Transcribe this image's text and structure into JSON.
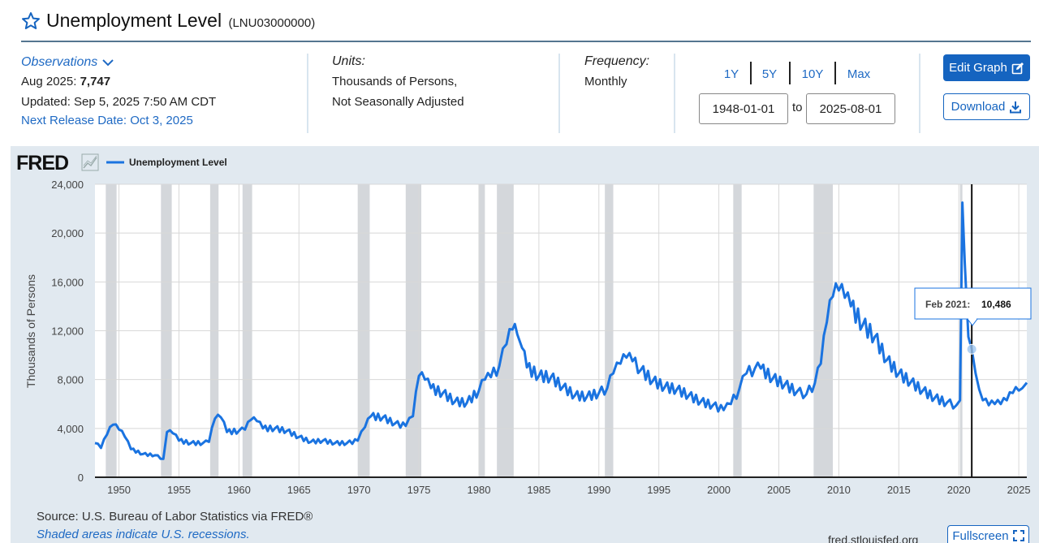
{
  "header": {
    "title": "Unemployment Level",
    "series_id": "(LNU03000000)"
  },
  "observations": {
    "toggle_label": "Observations",
    "latest_period": "Aug 2025:",
    "latest_value": "7,747",
    "updated": "Updated: Sep 5, 2025 7:50 AM CDT",
    "next_release": "Next Release Date: Oct 3, 2025"
  },
  "units": {
    "heading": "Units:",
    "line1": "Thousands of Persons,",
    "line2": "Not Seasonally Adjusted"
  },
  "frequency": {
    "heading": "Frequency:",
    "value": "Monthly"
  },
  "range_buttons": [
    "1Y",
    "5Y",
    "10Y",
    "Max"
  ],
  "date_range": {
    "start": "1948-01-01",
    "to_label": "to",
    "end": "2025-08-01"
  },
  "actions": {
    "edit_graph": "Edit Graph",
    "download": "Download",
    "fullscreen": "Fullscreen"
  },
  "footer": {
    "source": "Source: U.S. Bureau of Labor Statistics via FRED®",
    "shaded_note": "Shaded areas indicate U.S. recessions.",
    "site": "fred.stlouisfed.org"
  },
  "graph": {
    "logo": "FRED",
    "legend_label": "Unemployment Level",
    "tooltip_date": "Feb 2021:",
    "tooltip_value": "10,486"
  },
  "colors": {
    "series": "#1a73e0",
    "recession": "#d4d7db",
    "panel": "#e1e9f0",
    "button": "#1564c0"
  },
  "chart_data": {
    "type": "line",
    "ylabel": "Thousands of Persons",
    "ylim": [
      0,
      24000
    ],
    "xlim": [
      1948.0,
      2025.67
    ],
    "yticks": [
      0,
      4000,
      8000,
      12000,
      16000,
      20000,
      24000
    ],
    "ytick_labels": [
      "0",
      "4,000",
      "8,000",
      "12,000",
      "16,000",
      "20,000",
      "24,000"
    ],
    "xticks": [
      1950,
      1955,
      1960,
      1965,
      1970,
      1975,
      1980,
      1985,
      1990,
      1995,
      2000,
      2005,
      2010,
      2015,
      2020,
      2025
    ],
    "recessions": [
      [
        1948.9,
        1949.8
      ],
      [
        1953.5,
        1954.4
      ],
      [
        1957.6,
        1958.3
      ],
      [
        1960.3,
        1961.1
      ],
      [
        1969.9,
        1970.9
      ],
      [
        1973.9,
        1975.2
      ],
      [
        1980.0,
        1980.5
      ],
      [
        1981.5,
        1982.9
      ],
      [
        1990.5,
        1991.2
      ],
      [
        2001.2,
        2001.9
      ],
      [
        2007.9,
        2009.5
      ],
      [
        2020.1,
        2020.3
      ]
    ],
    "highlight": {
      "x": 2021.08,
      "y": 10486
    },
    "series": [
      {
        "name": "Unemployment Level",
        "x": [
          1948.0,
          1948.5,
          1949.0,
          1949.5,
          1950.0,
          1950.5,
          1951.0,
          1952.0,
          1953.0,
          1953.7,
          1954.0,
          1954.5,
          1955.0,
          1956.0,
          1957.0,
          1957.5,
          1958.0,
          1958.5,
          1959.0,
          1960.0,
          1960.5,
          1961.0,
          1961.5,
          1962.0,
          1963.0,
          1964.0,
          1965.0,
          1966.0,
          1967.0,
          1968.0,
          1969.0,
          1969.9,
          1970.5,
          1971.0,
          1972.0,
          1973.0,
          1973.9,
          1974.5,
          1975.0,
          1975.5,
          1976.0,
          1977.0,
          1978.0,
          1979.0,
          1980.0,
          1980.5,
          1981.0,
          1981.7,
          1982.3,
          1982.8,
          1983.2,
          1983.6,
          1984.0,
          1985.0,
          1986.0,
          1987.0,
          1988.0,
          1989.0,
          1990.0,
          1990.7,
          1991.2,
          1991.8,
          1992.3,
          1992.8,
          1993.5,
          1994.5,
          1995.5,
          1996.5,
          1997.5,
          1998.5,
          1999.5,
          2000.4,
          2001.0,
          2001.7,
          2002.3,
          2003.0,
          2003.5,
          2004.5,
          2005.5,
          2006.5,
          2007.3,
          2008.0,
          2008.5,
          2009.0,
          2009.5,
          2010.0,
          2010.5,
          2011.0,
          2012.0,
          2013.0,
          2014.0,
          2015.0,
          2016.0,
          2017.0,
          2018.0,
          2019.0,
          2019.8,
          2020.1,
          2020.3,
          2020.5,
          2020.8,
          2021.08,
          2021.4,
          2021.7,
          2022.0,
          2022.5,
          2023.0,
          2023.5,
          2024.0,
          2024.5,
          2025.0,
          2025.3,
          2025.67
        ],
        "values": [
          2800,
          2400,
          3500,
          4300,
          3900,
          3300,
          2300,
          1900,
          1800,
          1500,
          3700,
          3600,
          3000,
          2800,
          2800,
          2900,
          4800,
          4900,
          3700,
          3800,
          3900,
          4700,
          4600,
          4000,
          4000,
          3800,
          3300,
          2900,
          3000,
          2800,
          2800,
          3000,
          4100,
          5000,
          4900,
          4400,
          4200,
          5000,
          8300,
          8000,
          7300,
          6900,
          6200,
          6100,
          7100,
          8000,
          8200,
          9100,
          10900,
          12100,
          11700,
          10600,
          9000,
          8300,
          8200,
          7400,
          6700,
          6600,
          6900,
          7300,
          8500,
          9300,
          9800,
          9500,
          8800,
          7900,
          7400,
          7200,
          6700,
          6200,
          5900,
          5500,
          6000,
          7200,
          8500,
          8900,
          8900,
          8100,
          7600,
          7000,
          6800,
          7700,
          9300,
          12700,
          14800,
          15300,
          14700,
          14000,
          12500,
          11500,
          9600,
          8500,
          7800,
          7100,
          6500,
          6100,
          5900,
          6300,
          22500,
          17500,
          11500,
          10486,
          8500,
          7200,
          6300,
          5900,
          6000,
          6000,
          6300,
          6900,
          7100,
          7300,
          7747
        ]
      }
    ]
  }
}
